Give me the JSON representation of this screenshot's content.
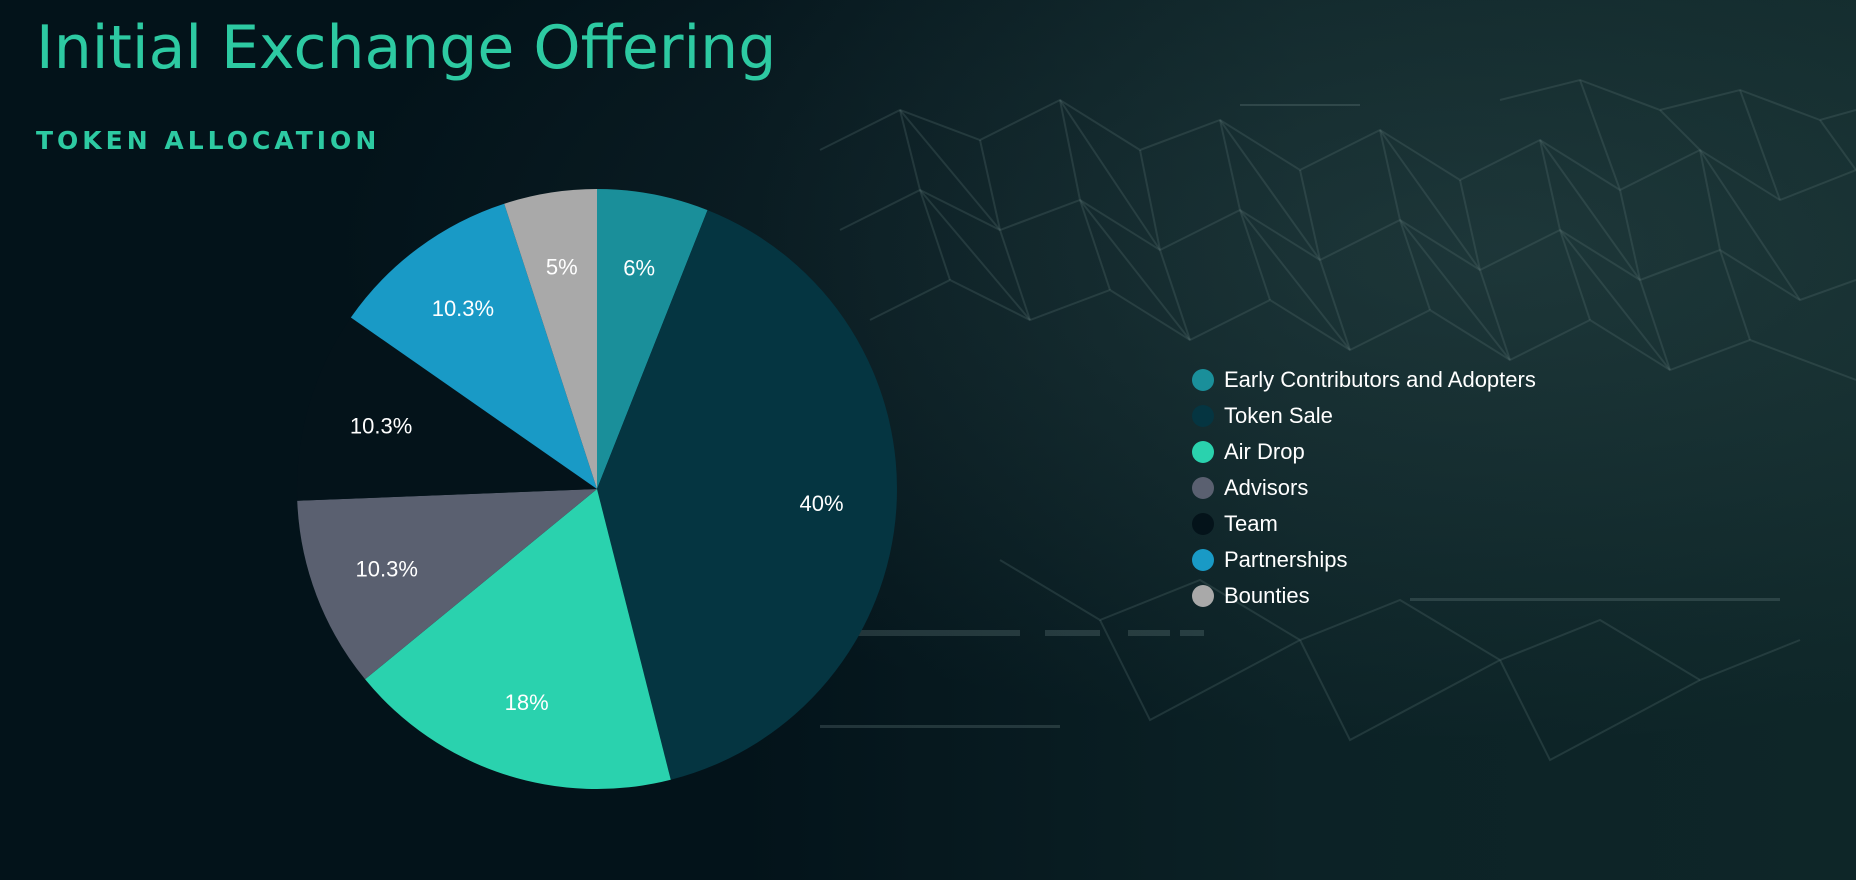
{
  "page": {
    "title": "Initial Exchange Offering",
    "subtitle": "TOKEN ALLOCATION"
  },
  "colors": {
    "background": "#03141a",
    "accent": "#2dcaa2"
  },
  "chart_data": {
    "type": "pie",
    "title": "",
    "start_angle_deg": 0,
    "direction": "clockwise",
    "legend_placement": "right",
    "slices": [
      {
        "label": "Early Contributors and Adopters",
        "value": 6,
        "display": "6%",
        "color": "#1a8f9a"
      },
      {
        "label": "Token Sale",
        "value": 40,
        "display": "40%",
        "color": "#053541"
      },
      {
        "label": "Air Drop",
        "value": 18,
        "display": "18%",
        "color": "#2ad2ae"
      },
      {
        "label": "Advisors",
        "value": 10.3,
        "display": "10.3%",
        "color": "#5a6070"
      },
      {
        "label": "Team",
        "value": 10.3,
        "display": "10.3%",
        "color": "#04131a"
      },
      {
        "label": "Partnerships",
        "value": 10.3,
        "display": "10.3%",
        "color": "#199ac6"
      },
      {
        "label": "Bounties",
        "value": 5,
        "display": "5%",
        "color": "#a9a9a9"
      }
    ]
  }
}
